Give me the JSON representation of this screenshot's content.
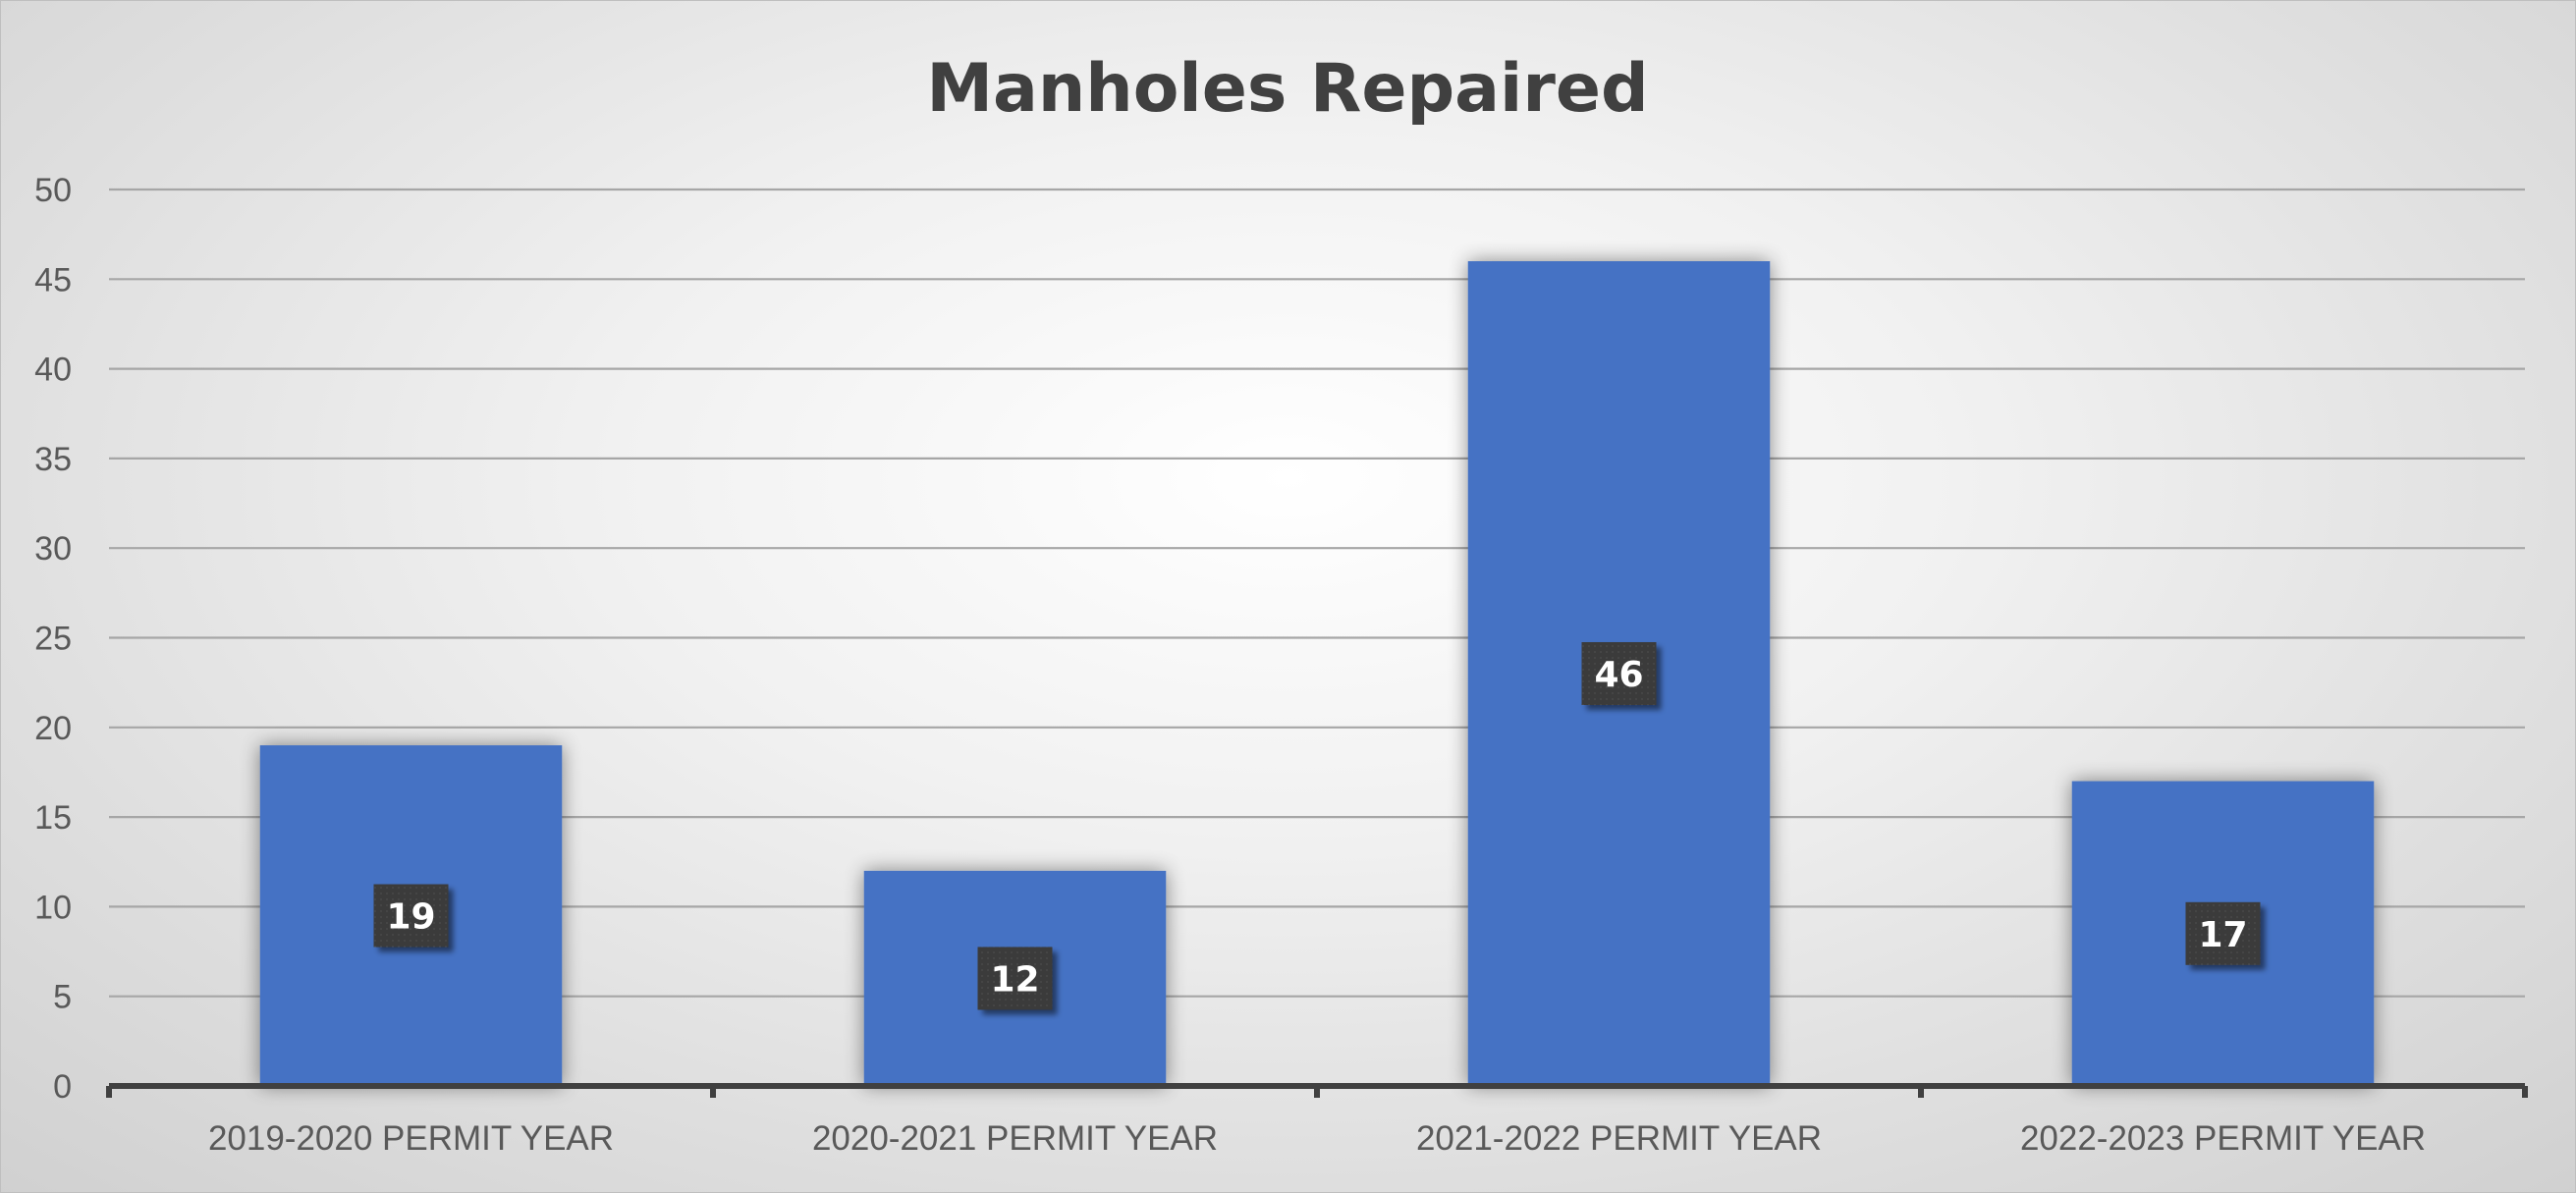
{
  "chart_data": {
    "type": "bar",
    "title": "Manholes Repaired",
    "xlabel": "",
    "ylabel": "",
    "categories": [
      "2019-2020 PERMIT YEAR",
      "2020-2021 PERMIT YEAR",
      "2021-2022 PERMIT YEAR",
      "2022-2023 PERMIT YEAR"
    ],
    "values": [
      19,
      12,
      46,
      17
    ],
    "ylim": [
      0,
      50
    ],
    "yticks": [
      0,
      5,
      10,
      15,
      20,
      25,
      30,
      35,
      40,
      45,
      50
    ],
    "grid": true,
    "legend": "none",
    "data_labels": true,
    "colors": {
      "bar": "#4472c4",
      "data_label_bg": "#3a3a3a",
      "gridline": "#a6a6a6",
      "axis": "#404040",
      "title": "#404040",
      "tick_text": "#595959"
    }
  }
}
